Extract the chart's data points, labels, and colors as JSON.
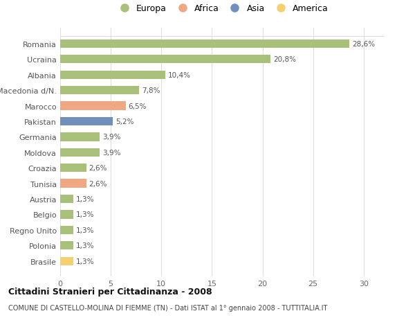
{
  "countries": [
    "Romania",
    "Ucraina",
    "Albania",
    "Macedonia d/N.",
    "Marocco",
    "Pakistan",
    "Germania",
    "Moldova",
    "Croazia",
    "Tunisia",
    "Austria",
    "Belgio",
    "Regno Unito",
    "Polonia",
    "Brasile"
  ],
  "values": [
    28.6,
    20.8,
    10.4,
    7.8,
    6.5,
    5.2,
    3.9,
    3.9,
    2.6,
    2.6,
    1.3,
    1.3,
    1.3,
    1.3,
    1.3
  ],
  "labels": [
    "28,6%",
    "20,8%",
    "10,4%",
    "7,8%",
    "6,5%",
    "5,2%",
    "3,9%",
    "3,9%",
    "2,6%",
    "2,6%",
    "1,3%",
    "1,3%",
    "1,3%",
    "1,3%",
    "1,3%"
  ],
  "continents": [
    "Europa",
    "Europa",
    "Europa",
    "Europa",
    "Africa",
    "Asia",
    "Europa",
    "Europa",
    "Europa",
    "Africa",
    "Europa",
    "Europa",
    "Europa",
    "Europa",
    "America"
  ],
  "colors": {
    "Europa": "#a8c07a",
    "Africa": "#f0a882",
    "Asia": "#7090bb",
    "America": "#f5d070"
  },
  "legend_order": [
    "Europa",
    "Africa",
    "Asia",
    "America"
  ],
  "title": "Cittadini Stranieri per Cittadinanza - 2008",
  "subtitle": "COMUNE DI CASTELLO-MOLINA DI FIEMME (TN) - Dati ISTAT al 1° gennaio 2008 - TUTTITALIA.IT",
  "xlim": [
    0,
    32
  ],
  "xticks": [
    0,
    5,
    10,
    15,
    20,
    25,
    30
  ],
  "bg_color": "#ffffff",
  "grid_color": "#dddddd",
  "bar_height": 0.55,
  "label_fontsize": 7.5,
  "tick_fontsize": 8,
  "legend_fontsize": 9,
  "title_fontsize": 9,
  "subtitle_fontsize": 7
}
